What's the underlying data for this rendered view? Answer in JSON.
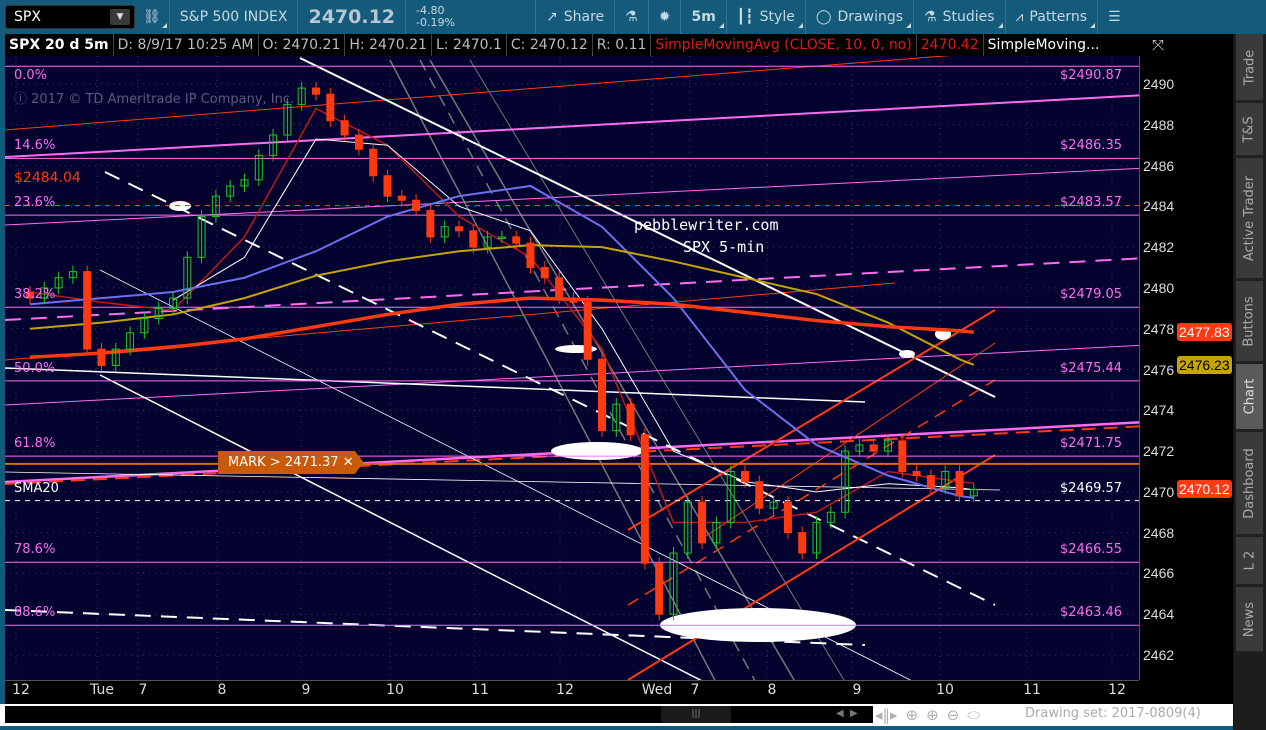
{
  "toolbar": {
    "symbol": "SPX",
    "description": "S&P 500 INDEX",
    "last": "2470.12",
    "change": "-4.80",
    "change_pct": "-0.19%",
    "share": "Share",
    "interval": "5m",
    "style": "Style",
    "drawings": "Drawings",
    "studies": "Studies",
    "patterns": "Patterns"
  },
  "infobar": {
    "title": "SPX 20 d 5m",
    "date": "D: 8/9/17 10:25 AM",
    "open": "O: 2470.21",
    "high": "H: 2470.21",
    "low": "L: 2470.1",
    "close": "C: 2470.12",
    "range": "R: 0.11",
    "study": "SimpleMovingAvg (CLOSE, 10, 0, no)",
    "study_value": "2470.42",
    "study2": "SimpleMoving..."
  },
  "watermark": "2017 © TD Ameritrade IP Company, Inc.",
  "annotation": {
    "line1": "pebblewriter.com",
    "line2": "SPX 5-min"
  },
  "fib_levels": [
    {
      "pct": "0.0%",
      "price": 2490.87,
      "label": "$2490.87"
    },
    {
      "pct": "14.6%",
      "price": 2486.35,
      "label": "$2486.35"
    },
    {
      "pct": "23.6%",
      "price": 2483.57,
      "label": "$2483.57"
    },
    {
      "pct": "38.2%",
      "price": 2479.05,
      "label": "$2479.05"
    },
    {
      "pct": "50.0%",
      "price": 2475.44,
      "label": "$2475.44"
    },
    {
      "pct": "61.8%",
      "price": 2471.75,
      "label": "$2471.75"
    },
    {
      "pct": "78.6%",
      "price": 2466.55,
      "label": "$2466.55"
    },
    {
      "pct": "88.6%",
      "price": 2463.46,
      "label": "$2463.46"
    }
  ],
  "price_lines": {
    "red_level": {
      "price": 2484.04,
      "label": "$2484.04"
    },
    "sma20": {
      "price": 2469.57,
      "name": "SMA20",
      "label": "$2469.57"
    },
    "mark": {
      "price": 2471.37,
      "label": "MARK > 2471.37 ✕"
    }
  },
  "badges": [
    {
      "value": "2477.83",
      "price": 2477.83,
      "color": "#ff3a10",
      "text": "#fff"
    },
    {
      "value": "2476.23",
      "price": 2476.23,
      "color": "#c8a400",
      "text": "#000"
    },
    {
      "value": "2470.12",
      "price": 2470.12,
      "color": "#ff3a10",
      "text": "#fff"
    }
  ],
  "colors": {
    "background": "#04032f",
    "up": "#1ec81e",
    "down": "#ff3a10",
    "fib": "#ff6cf0",
    "toolbar": "#145a7b"
  },
  "chart_data": {
    "type": "candlestick",
    "ylim": [
      2460.8,
      2492.6
    ],
    "yticks": [
      "2490",
      "2488",
      "2486",
      "2484",
      "2482",
      "2480",
      "2478",
      "2476",
      "2474",
      "2472",
      "2470",
      "2468",
      "2466",
      "2464",
      "2462"
    ],
    "xticks": [
      "12",
      "Tue",
      "7",
      "8",
      "9",
      "10",
      "11",
      "12",
      "Wed",
      "7",
      "8",
      "9",
      "10",
      "11",
      "12"
    ],
    "closes": [
      2479.5,
      2480,
      2480.5,
      2480.8,
      2477,
      2476.2,
      2477,
      2477.8,
      2478.5,
      2479,
      2479.5,
      2481.5,
      2483.5,
      2484.5,
      2485,
      2485.3,
      2486.5,
      2487.5,
      2489,
      2489.8,
      2489.5,
      2488.2,
      2487.5,
      2486.8,
      2485.5,
      2484.5,
      2484.3,
      2483.8,
      2482.5,
      2483,
      2482.8,
      2482,
      2482.5,
      2482.5,
      2482.2,
      2481,
      2480.5,
      2479.5,
      2479.3,
      2476.5,
      2473,
      2474.3,
      2472.8,
      2466.5,
      2464,
      2467,
      2469.5,
      2467.5,
      2468.5,
      2471,
      2470.5,
      2469.2,
      2469.5,
      2468,
      2467,
      2468.5,
      2469,
      2472,
      2472.3,
      2472,
      2472.5,
      2471,
      2470.8,
      2470.2,
      2471,
      2469.8,
      2470.12
    ],
    "moving_averages": [
      {
        "name": "SimpleMovingAvg (CLOSE, 10, 0, no)",
        "color": "#c01818",
        "width": 1.5,
        "values": [
          2479.8,
          2479.3,
          2478.9,
          2482.5,
          2488.8,
          2487,
          2483.5,
          2481.5,
          2477,
          2468.5,
          2468.5,
          2469,
          2471,
          2470.5,
          2470.42
        ]
      },
      {
        "color": "#ffffff",
        "width": 1,
        "values": [
          null,
          null,
          2479.4,
          2481.5,
          2487.3,
          2487,
          2484,
          2482.8,
          2478,
          2472,
          2470.5,
          2470,
          2470.4,
          2470.2,
          2470.1
        ]
      },
      {
        "color": "#6e6ef0",
        "width": 2,
        "values": [
          2479.2,
          2479.5,
          2479.8,
          2480.5,
          2481.8,
          2483.5,
          2484.5,
          2485,
          2483,
          2479.5,
          2475,
          2472.3,
          2470.8,
          2469.8,
          2469.7
        ]
      },
      {
        "color": "#c8a400",
        "width": 2,
        "values": [
          2478,
          2478.3,
          2478.7,
          2479.5,
          2480.6,
          2481.3,
          2481.8,
          2482.1,
          2482,
          2481.3,
          2480.5,
          2479.7,
          2478.3,
          2476.5,
          2476.23
        ]
      },
      {
        "color": "#ff3a10",
        "width": 3.5,
        "values": [
          2476.6,
          2476.8,
          2477.1,
          2477.5,
          2478.1,
          2478.7,
          2479.2,
          2479.5,
          2479.4,
          2479.2,
          2478.8,
          2478.4,
          2478.1,
          2477.9,
          2477.83
        ]
      }
    ]
  },
  "bottom": {
    "drawing_set": "Drawing set: 2017-0809(4)"
  },
  "sidebar": {
    "tabs": [
      "Trade",
      "T&S",
      "Active Trader",
      "Buttons",
      "Chart",
      "Dashboard",
      "L 2",
      "News"
    ],
    "active": "Chart"
  }
}
